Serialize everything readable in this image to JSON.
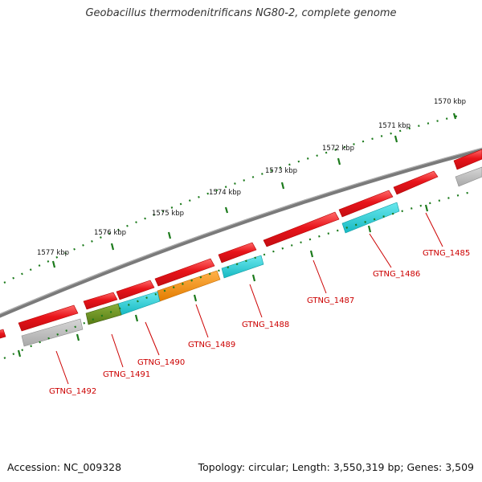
{
  "title": "Geobacillus thermodenitrificans NG80-2, complete genome",
  "footer": {
    "accession": "Accession: NC_009328",
    "topology": "Topology: circular; Length: 3,550,319 bp; Genes: 3,509"
  },
  "colors": {
    "forward_gene": "#e8141a",
    "reverse_gray": "#b9b9b9",
    "reverse_cyan": "#22cdd6",
    "reverse_orange": "#f28a0a",
    "reverse_olive": "#6a8f1e",
    "tick": "#1b7a1b",
    "backbone": "#7a7a7a",
    "label": "#cc0000"
  },
  "scale_labels": [
    "1570 kbp",
    "1571 kbp",
    "1572 kbp",
    "1573 kbp",
    "1574 kbp",
    "1575 kbp",
    "1576 kbp",
    "1577 kbp"
  ],
  "gene_labels": [
    "GTNG_1485",
    "GTNG_1486",
    "GTNG_1487",
    "GTNG_1488",
    "GTNG_1489",
    "GTNG_1490",
    "GTNG_1491",
    "GTNG_1492"
  ]
}
